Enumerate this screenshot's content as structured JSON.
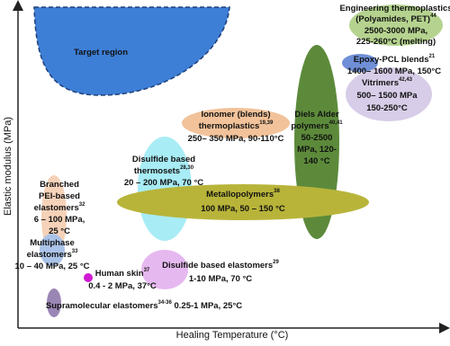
{
  "axes": {
    "y_label": "Elastic modulus (MPa)",
    "x_label": "Healing Temperature (°C)"
  },
  "regions": [
    {
      "lines": [
        {
          "text": "Target region"
        }
      ]
    },
    {
      "lines": [
        {
          "text": "Engineering thermoplastics"
        },
        {
          "text": "(Polyamides, PET)",
          "sup": "44"
        },
        {
          "text": "2500-3000 MPa,"
        },
        {
          "text": "225-260°C (melting)"
        }
      ]
    },
    {
      "lines": [
        {
          "text": "Epoxy-PCL blends",
          "sup": "21"
        },
        {
          "text": "1400– 1600 MPa, 150°C"
        }
      ]
    },
    {
      "lines": [
        {
          "text": "Vitrimers",
          "sup": "42,43"
        },
        {
          "text": "500– 1500 MPa"
        },
        {
          "text": "150-250°C"
        }
      ]
    },
    {
      "lines": [
        {
          "text": "Diels Alder"
        },
        {
          "text": "polymers",
          "sup": "40,41"
        },
        {
          "text": "50-2500"
        },
        {
          "text": "MPa, 120-"
        },
        {
          "text": "140 °C"
        }
      ]
    },
    {
      "lines": [
        {
          "text": "Ionomer (blends)"
        },
        {
          "text": "thermoplastics",
          "sup": "19,39"
        },
        {
          "text": "250– 350 MPa, 90-110°C"
        }
      ]
    },
    {
      "lines": [
        {
          "text": "Disulfide based"
        },
        {
          "text": "thermosets",
          "sup": "28,30"
        },
        {
          "text": "20 – 200 MPa, 70 °C"
        }
      ]
    },
    {
      "lines": [
        {
          "text": "Metallopolymers",
          "sup": "38"
        },
        {
          "text": "100 MPa, 50 – 150 °C"
        }
      ]
    },
    {
      "lines": [
        {
          "text": "Branched"
        },
        {
          "text": "PEI-based"
        },
        {
          "text": "elastomers",
          "sup": "32"
        },
        {
          "text": "6 – 100 MPa,"
        },
        {
          "text": "25 °C"
        }
      ]
    },
    {
      "lines": [
        {
          "text": "Multiphase"
        },
        {
          "text": "elastomers",
          "sup": "33"
        },
        {
          "text": "10 – 40 MPa, 25 °C"
        }
      ]
    },
    {
      "lines": [
        {
          "text": "Human skin",
          "sup": "37"
        },
        {
          "text": "0.4 - 2 MPa, 37°C"
        }
      ]
    },
    {
      "lines": [
        {
          "text": "Disulfide based elastomers",
          "sup": "29"
        },
        {
          "text": "1-10 MPa, 70 °C"
        }
      ]
    },
    {
      "lines": [
        {
          "text": "Supramolecular elastomers",
          "sup": "34-36",
          "rest": " 0.25-1 MPa, 25°C"
        }
      ]
    }
  ]
}
